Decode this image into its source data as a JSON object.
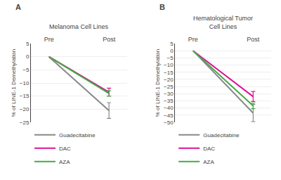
{
  "chart_data": [
    {
      "type": "line",
      "title": "Melanoma Cell Lines",
      "annotations": [
        "A"
      ],
      "ylabel": "% of LINE-1 Demethylation",
      "categories": [
        "Pre",
        "Post"
      ],
      "ylim": [
        -25,
        5
      ],
      "yticks": [
        -25,
        -20,
        -15,
        -10,
        -5,
        0,
        5
      ],
      "grid": true,
      "legend": "bottom",
      "series": [
        {
          "name": "Guadecitabine",
          "color": "#888888",
          "values": [
            0,
            -20.5
          ],
          "errors": [
            null,
            3.0
          ]
        },
        {
          "name": "DAC",
          "color": "#dd1199",
          "values": [
            0,
            -13.5
          ],
          "errors": [
            null,
            1.5
          ]
        },
        {
          "name": "AZA",
          "color": "#44aa44",
          "values": [
            0,
            -14.0
          ],
          "errors": [
            null,
            1.0
          ]
        }
      ]
    },
    {
      "type": "line",
      "title": "Hematological Tumor\nCell Lines",
      "annotations": [
        "B"
      ],
      "ylabel": "% of LINE-1 Demethylation",
      "categories": [
        "Pre",
        "Post"
      ],
      "ylim": [
        -50,
        5
      ],
      "yticks": [
        -50,
        -45,
        -40,
        -35,
        -30,
        -25,
        -20,
        -15,
        -10,
        -5,
        0,
        5
      ],
      "grid": true,
      "legend": "bottom",
      "series": [
        {
          "name": "Guadecitabine",
          "color": "#888888",
          "values": [
            0,
            -43.5
          ],
          "errors": [
            null,
            6.0
          ]
        },
        {
          "name": "DAC",
          "color": "#dd1199",
          "values": [
            0,
            -32.0
          ],
          "errors": [
            null,
            3.5
          ]
        },
        {
          "name": "AZA",
          "color": "#44aa44",
          "values": [
            0,
            -38.5
          ],
          "errors": [
            null,
            2.0
          ]
        }
      ]
    }
  ]
}
